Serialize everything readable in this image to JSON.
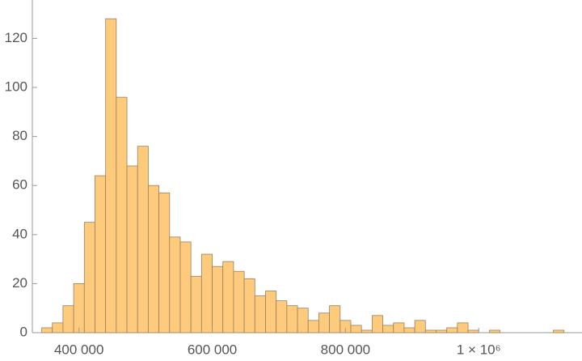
{
  "chart_data": {
    "type": "histogram",
    "bins": [
      344000,
      360000,
      376000,
      392000,
      408000,
      424000,
      440000,
      456000,
      472000,
      488000,
      504000,
      520000,
      536000,
      552000,
      568000,
      584000,
      600000,
      616000,
      632000,
      648000,
      664000,
      680000,
      696000,
      712000,
      728000,
      744000,
      760000,
      776000,
      792000,
      808000,
      824000,
      840000,
      856000,
      872000,
      888000,
      904000,
      920000,
      936000,
      952000,
      968000,
      984000,
      1000000,
      1016000,
      1032000,
      1048000,
      1064000,
      1080000,
      1096000,
      1112000,
      1128000
    ],
    "counts": [
      2,
      4,
      11,
      20,
      45,
      64,
      128,
      96,
      68,
      76,
      60,
      57,
      39,
      37,
      23,
      32,
      27,
      29,
      25,
      22,
      15,
      17,
      13,
      11,
      10,
      5,
      8,
      11,
      5,
      3,
      1,
      7,
      3,
      4,
      2,
      5,
      1,
      1,
      2,
      4,
      1,
      0,
      1,
      0,
      0,
      0,
      0,
      0,
      1
    ],
    "color": "#fdcb7b",
    "xlim": [
      330000,
      1155000
    ],
    "ylim": [
      0,
      134
    ],
    "xticks": [
      {
        "value": 400000,
        "label": "400 000"
      },
      {
        "value": 600000,
        "label": "600 000"
      },
      {
        "value": 800000,
        "label": "800 000"
      },
      {
        "value": 1000000,
        "label": "1 × 10⁶"
      }
    ],
    "yticks": [
      0,
      20,
      40,
      60,
      80,
      100,
      120
    ]
  }
}
